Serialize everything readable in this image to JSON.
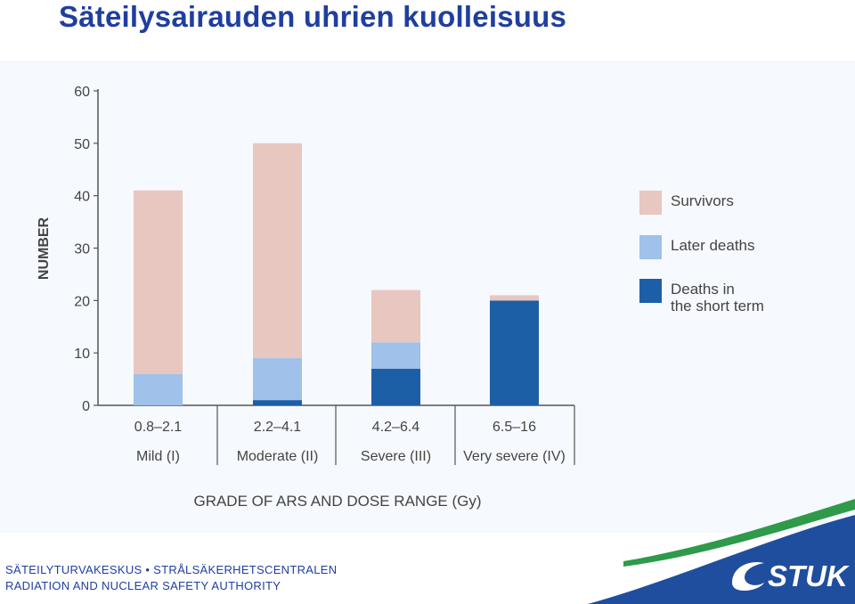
{
  "slide": {
    "title": "Säteilysairauden uhrien kuolleisuus"
  },
  "footer": {
    "org_line": "SÄTEILYTURVAKESKUS • STRÅLSÄKERHETSCENTRALEN",
    "org_line_en": "RADIATION AND NUCLEAR SAFETY AUTHORITY",
    "logo_text": "STUK"
  },
  "colors": {
    "survivors": "#e7c7bf",
    "later_deaths": "#9fc1ea",
    "short_term_deaths": "#1d5fa6",
    "axis": "#555555",
    "title": "#1f3f9f",
    "logo_blue": "#1f4e9e",
    "logo_green": "#2e9a4a"
  },
  "chart_data": {
    "type": "bar",
    "stacked": true,
    "ylabel": "NUMBER",
    "xlabel": "GRADE OF ARS AND DOSE RANGE (Gy)",
    "ylim": [
      0,
      60
    ],
    "yticks": [
      0,
      10,
      20,
      30,
      40,
      50,
      60
    ],
    "categories": [
      {
        "dose": "0.8–2.1",
        "grade": "Mild (I)"
      },
      {
        "dose": "2.2–4.1",
        "grade": "Moderate (II)"
      },
      {
        "dose": "4.2–6.4",
        "grade": "Severe (III)"
      },
      {
        "dose": "6.5–16",
        "grade": "Very severe (IV)"
      }
    ],
    "series": [
      {
        "name": "Deaths in the short term",
        "key": "short_term_deaths",
        "values": [
          0,
          1,
          7,
          20
        ]
      },
      {
        "name": "Later deaths",
        "key": "later_deaths",
        "values": [
          6,
          8,
          5,
          0
        ]
      },
      {
        "name": "Survivors",
        "key": "survivors",
        "values": [
          35,
          41,
          10,
          1
        ]
      }
    ],
    "legend": {
      "placement": "right",
      "entries": [
        {
          "label_lines": [
            "Survivors"
          ],
          "key": "survivors"
        },
        {
          "label_lines": [
            "Later deaths"
          ],
          "key": "later_deaths"
        },
        {
          "label_lines": [
            "Deaths in",
            "the short term"
          ],
          "key": "short_term_deaths"
        }
      ]
    },
    "grid": false
  }
}
